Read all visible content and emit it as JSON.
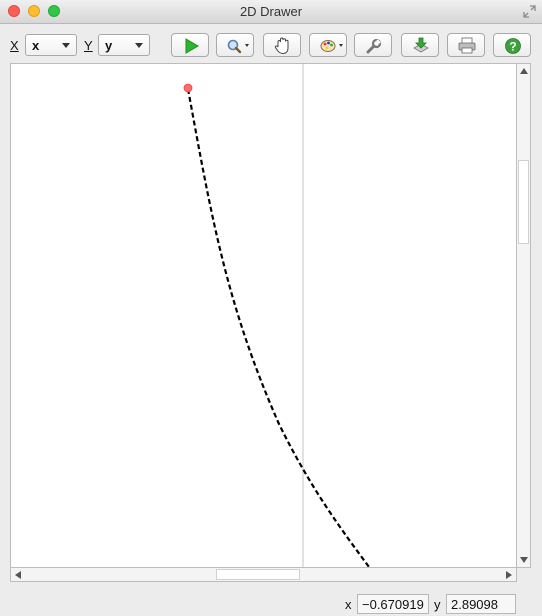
{
  "window": {
    "title": "2D Drawer"
  },
  "toolbar": {
    "x_label": "X",
    "x_value": "x",
    "y_label": "Y",
    "y_value": "y",
    "buttons": [
      {
        "name": "run-button",
        "icon": "play-icon"
      },
      {
        "name": "zoom-button",
        "icon": "magnifier-icon"
      },
      {
        "name": "pan-button",
        "icon": "hand-icon"
      },
      {
        "name": "color-button",
        "icon": "palette-icon"
      },
      {
        "name": "settings-button",
        "icon": "wrench-icon"
      },
      {
        "name": "export-button",
        "icon": "download-icon"
      },
      {
        "name": "print-button",
        "icon": "printer-icon"
      },
      {
        "name": "help-button",
        "icon": "help-icon"
      }
    ]
  },
  "colors": {
    "play": "#2db52d",
    "help": "#3aa23a",
    "point": "#ff6b6b",
    "curve": "#000000",
    "axis": "#d8d8d8"
  },
  "status": {
    "x_label": "x",
    "x_value": "−0.670919",
    "y_label": "y",
    "y_value": "2.89098"
  }
}
